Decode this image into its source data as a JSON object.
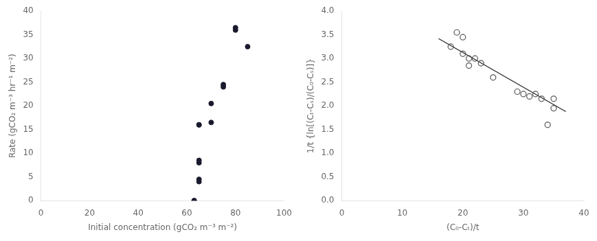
{
  "chart_data": [
    {
      "type": "scatter",
      "xlabel": "Initial concentration (gCO₂ m⁻³ m⁻²)",
      "ylabel": "Rate (gCO₂ m⁻³ hr⁻¹ m⁻²)",
      "xlim": [
        0,
        100
      ],
      "ylim": [
        0,
        40
      ],
      "xticks": [
        0,
        20,
        40,
        60,
        80,
        100
      ],
      "yticks": [
        0,
        5,
        10,
        15,
        20,
        25,
        30,
        35,
        40
      ],
      "grid": false,
      "series": [
        {
          "type": "scatter",
          "color": "#1a1a2e",
          "marker": "circle",
          "x": [
            63,
            63,
            65,
            65,
            65,
            65,
            65,
            65,
            70,
            70,
            75,
            75,
            80,
            80,
            85
          ],
          "values": [
            0,
            0,
            4,
            4.5,
            8,
            8.5,
            16,
            16,
            16.5,
            20.5,
            24,
            24.5,
            36.5,
            36,
            32.5
          ]
        }
      ]
    },
    {
      "type": "scatter",
      "xlabel": "(C₀-Cₜ)/t",
      "ylabel": "1/t {ln[(Cₜ-Cₛ)/(C₀-Cₛ)]}",
      "xlim": [
        0,
        40
      ],
      "ylim": [
        0,
        4
      ],
      "xticks": [
        0,
        10,
        20,
        30,
        40
      ],
      "yticks": [
        {
          "value": 0,
          "label": "0.0"
        },
        0.5,
        {
          "value": 1.0,
          "label": "1.0"
        },
        1.5,
        {
          "value": 2.0,
          "label": "2.0"
        },
        2.5,
        {
          "value": 3.0,
          "label": "3.0"
        },
        3.5,
        {
          "value": 4.0,
          "label": "4.0"
        }
      ],
      "grid": false,
      "series": [
        {
          "type": "scatter",
          "color": "#555555",
          "marker": "open_circle",
          "x": [
            18,
            19,
            20,
            20,
            21,
            21,
            22,
            23,
            25,
            29,
            30,
            31,
            32,
            33,
            34,
            35,
            35
          ],
          "values": [
            3.25,
            3.55,
            3.1,
            3.45,
            3.0,
            2.85,
            3.0,
            2.9,
            2.6,
            2.3,
            2.25,
            2.2,
            2.25,
            2.15,
            1.6,
            1.95,
            2.15
          ]
        },
        {
          "type": "line",
          "color": "#222222",
          "line_style": "solid",
          "x": [
            16,
            37
          ],
          "values": [
            3.42,
            1.88
          ]
        }
      ]
    }
  ]
}
